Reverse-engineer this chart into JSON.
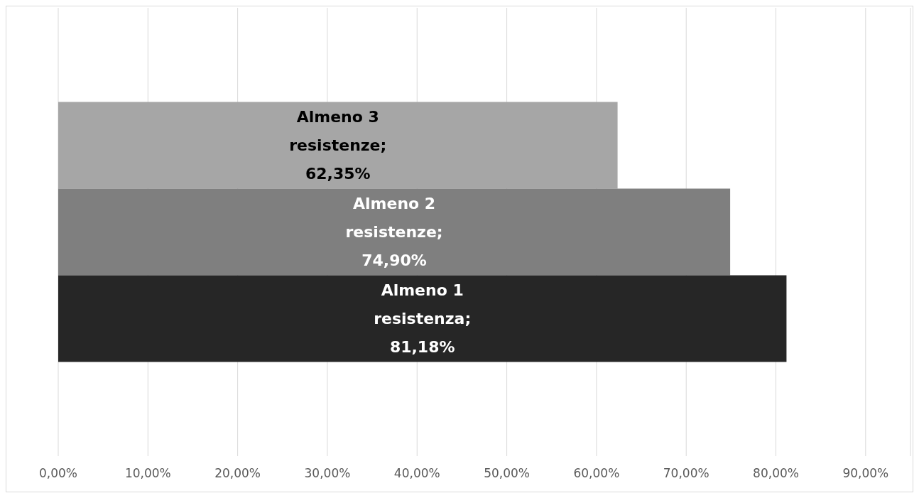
{
  "chart_data": {
    "type": "bar",
    "orientation": "horizontal",
    "categories": [
      null
    ],
    "series": [
      {
        "color": "#a6a6a6",
        "values": [
          62.35
        ],
        "value_labels": [
          "Almeno 3 resistenze; 62,35%"
        ]
      },
      {
        "color": "#7f7f7f",
        "values": [
          74.9
        ],
        "value_labels": [
          "Almeno 2 resistenze; 74,90%"
        ]
      },
      {
        "color": "#262626",
        "values": [
          81.18
        ],
        "value_labels": [
          "Almeno 1 resistenza; 81,18%"
        ]
      }
    ],
    "xlim": [
      0,
      95
    ],
    "xticks": [
      {
        "value": 0,
        "label": "0,00%"
      },
      {
        "value": 10,
        "label": "10,00%"
      },
      {
        "value": 20,
        "label": "20,00%"
      },
      {
        "value": 30,
        "label": "30,00%"
      },
      {
        "value": 40,
        "label": "40,00%"
      },
      {
        "value": 50,
        "label": "50,00%"
      },
      {
        "value": 60,
        "label": "60,00%"
      },
      {
        "value": 70,
        "label": "70,00%"
      },
      {
        "value": 80,
        "label": "80,00%"
      },
      {
        "value": 90,
        "label": "90,00%"
      }
    ],
    "grid": "x",
    "legend": false
  }
}
